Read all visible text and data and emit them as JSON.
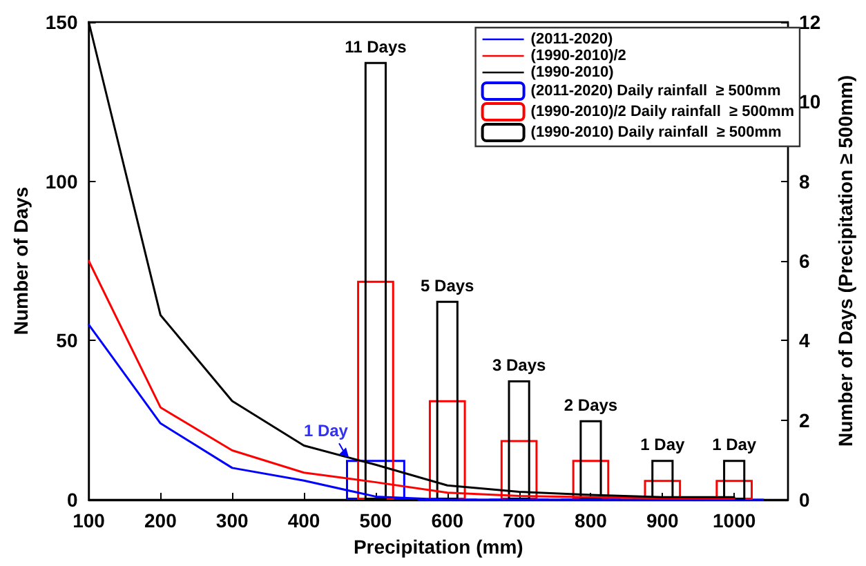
{
  "chart_data": {
    "type": "line",
    "xlabel": "Precipitation (mm)",
    "ylabel": "Number of Days",
    "y2label": "Number of Days (Precipitation ≥ 500mm)",
    "xlim": [
      100,
      1075
    ],
    "xticks": [
      100,
      200,
      300,
      400,
      500,
      600,
      700,
      800,
      900,
      1000
    ],
    "ylim": [
      0,
      150
    ],
    "yticks": [
      0,
      50,
      100,
      150
    ],
    "y2lim": [
      0,
      12
    ],
    "y2ticks": [
      0,
      2,
      4,
      6,
      8,
      10,
      12
    ],
    "grid": false,
    "legend": "top right",
    "marker": "none",
    "line_style": "solid",
    "series": [
      {
        "name": "(2011-2020)",
        "color": "#0000ff",
        "x": [
          100,
          200,
          300,
          400,
          500,
          600,
          700,
          800,
          900,
          1000
        ],
        "values": [
          55,
          24,
          10,
          6,
          1,
          0,
          0,
          0,
          0,
          0
        ]
      },
      {
        "name": "(1990-2010)/2",
        "color": "#ff0000",
        "x": [
          100,
          200,
          300,
          400,
          500,
          600,
          700,
          800,
          900,
          1000
        ],
        "values": [
          75,
          29,
          15.5,
          8.5,
          5.5,
          2.2,
          1.2,
          0.8,
          0.5,
          0.4
        ]
      },
      {
        "name": "(1990-2010)",
        "color": "#000000",
        "x": [
          100,
          200,
          300,
          400,
          500,
          600,
          700,
          800,
          900,
          1000
        ],
        "values": [
          150,
          58,
          31,
          17,
          11,
          4.5,
          2.5,
          1.5,
          0.8,
          0.8
        ]
      },
      {
        "name": "(2011-2020) Daily rainfall  ≥ 500mm",
        "type": "bar",
        "axis": "y2",
        "color": "#0000ff",
        "x": [
          500,
          600,
          700,
          800,
          900,
          1000
        ],
        "values": [
          1,
          0,
          0,
          0,
          0,
          0
        ],
        "value_labels": [
          "1 Day",
          null,
          null,
          null,
          null,
          null
        ]
      },
      {
        "name": "(1990-2010)/2 Daily rainfall  ≥ 500mm",
        "type": "bar",
        "axis": "y2",
        "color": "#ff0000",
        "x": [
          500,
          600,
          700,
          800,
          900,
          1000
        ],
        "values": [
          5.5,
          2.5,
          1.5,
          1,
          0.5,
          0.5
        ]
      },
      {
        "name": "(1990-2010) Daily rainfall  ≥ 500mm",
        "type": "bar",
        "axis": "y2",
        "color": "#000000",
        "x": [
          500,
          600,
          700,
          800,
          900,
          1000
        ],
        "values": [
          11,
          5,
          3,
          2,
          1,
          1
        ],
        "value_labels": [
          "11 Days",
          "5 Days",
          "3 Days",
          "2 Days",
          "1 Day",
          "1 Day"
        ]
      }
    ]
  }
}
